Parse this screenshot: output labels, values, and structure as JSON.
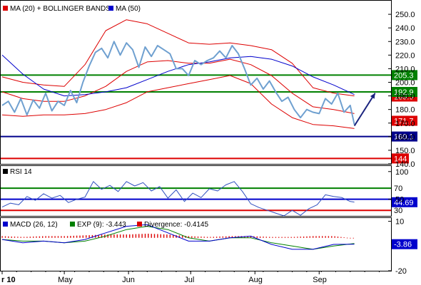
{
  "chart_data": [
    {
      "type": "line",
      "panel": "price",
      "legend": [
        {
          "label": "MA (20) + BOLLINGER BANDS",
          "color": "#dd0000"
        },
        {
          "label": "MA (50)",
          "color": "#0000cc"
        }
      ],
      "ylim": [
        140,
        260
      ],
      "ytick_labels": [
        "250.0",
        "240.0",
        "230.0",
        "220.0",
        "210.0",
        "200.0",
        "190.0",
        "180.0",
        "170.0",
        "160.0",
        "150.0",
        "140.0"
      ],
      "ytick_values": [
        250,
        240,
        230,
        220,
        210,
        200,
        190,
        180,
        170,
        160,
        150,
        140
      ],
      "x_labels": [
        "r 10",
        "May",
        "Jun",
        "Jul",
        "Aug",
        "Sep"
      ],
      "x_label_days": [
        0,
        30,
        61,
        91,
        122,
        153
      ],
      "x_range_days": [
        0,
        187
      ],
      "horizontal_levels": [
        {
          "value": 205.3,
          "label": "205.3",
          "color": "#008000"
        },
        {
          "value": 192.9,
          "label": "192.9",
          "color": "#008000"
        },
        {
          "value": 160.1,
          "label": "160.1",
          "color": "#00008b"
        },
        {
          "value": 144,
          "label": "144",
          "color": "#dd0000"
        }
      ],
      "value_tags": [
        {
          "value": 189.5,
          "label": "189.5",
          "color": "#dd0000"
        },
        {
          "value": 171.7,
          "label": "171.7",
          "color": "#dd0000"
        }
      ],
      "forecast_arrow": {
        "from": [
          170,
          168
        ],
        "to": [
          180,
          192
        ]
      },
      "series": [
        {
          "key": "price",
          "color": "#6fa0d0",
          "days": [
            0,
            3,
            6,
            9,
            12,
            15,
            18,
            21,
            24,
            27,
            30,
            33,
            36,
            39,
            42,
            45,
            48,
            51,
            54,
            57,
            60,
            63,
            66,
            69,
            72,
            75,
            78,
            81,
            84,
            87,
            90,
            93,
            96,
            99,
            102,
            105,
            108,
            111,
            114,
            117,
            120,
            123,
            126,
            129,
            132,
            135,
            138,
            141,
            144,
            147,
            150,
            153,
            156,
            159,
            162,
            165,
            168,
            170
          ],
          "values": [
            183,
            186,
            178,
            188,
            176,
            187,
            181,
            192,
            179,
            186,
            183,
            194,
            185,
            200,
            212,
            222,
            225,
            218,
            230,
            220,
            229,
            224,
            211,
            226,
            219,
            227,
            224,
            221,
            210,
            210,
            205,
            216,
            213,
            216,
            218,
            223,
            218,
            227,
            221,
            210,
            198,
            203,
            195,
            201,
            193,
            186,
            189,
            180,
            174,
            180,
            178,
            177,
            188,
            184,
            192,
            178,
            183,
            169
          ]
        },
        {
          "key": "ma20",
          "color": "#dd0000",
          "days": [
            0,
            10,
            20,
            30,
            40,
            50,
            60,
            70,
            80,
            90,
            100,
            110,
            120,
            130,
            140,
            150,
            160,
            170
          ],
          "values": [
            193,
            188,
            186,
            186,
            190,
            197,
            208,
            215,
            216,
            214,
            214,
            217,
            213,
            205,
            192,
            182,
            180,
            177
          ]
        },
        {
          "key": "bb_upper",
          "color": "#dd0000",
          "days": [
            0,
            10,
            20,
            30,
            40,
            50,
            60,
            70,
            80,
            90,
            100,
            110,
            120,
            130,
            140,
            150,
            160,
            170
          ],
          "values": [
            204,
            200,
            198,
            197,
            213,
            238,
            246,
            243,
            236,
            229,
            228,
            229,
            227,
            224,
            214,
            196,
            192,
            190
          ]
        },
        {
          "key": "bb_lower",
          "color": "#dd0000",
          "days": [
            0,
            10,
            20,
            30,
            40,
            50,
            60,
            70,
            80,
            90,
            100,
            110,
            120,
            130,
            140,
            150,
            160,
            170
          ],
          "values": [
            176,
            175,
            176,
            176,
            177,
            180,
            185,
            193,
            196,
            199,
            202,
            205,
            199,
            184,
            174,
            169,
            168,
            166
          ]
        },
        {
          "key": "ma50",
          "color": "#0000cc",
          "days": [
            0,
            10,
            20,
            30,
            40,
            50,
            60,
            70,
            80,
            90,
            100,
            110,
            120,
            130,
            140,
            150,
            160,
            170
          ],
          "values": [
            220,
            206,
            195,
            190,
            191,
            193,
            196,
            202,
            208,
            213,
            215,
            218,
            219,
            217,
            212,
            204,
            198,
            191
          ]
        }
      ]
    },
    {
      "type": "line",
      "panel": "rsi",
      "legend": [
        {
          "label": "RSI 14",
          "color": "#000000"
        }
      ],
      "ylim": [
        20,
        110
      ],
      "ytick_labels": [
        "100",
        "50"
      ],
      "ytick_values": [
        100,
        50
      ],
      "levels": [
        {
          "value": 70,
          "label": "70",
          "color": "#008000"
        },
        {
          "value": 50,
          "color": "#0000cc"
        },
        {
          "value": 30,
          "label": "30",
          "color": "#dd0000"
        }
      ],
      "value_tag": {
        "value": 44.69,
        "label": "44.69",
        "color": "#0000cc"
      },
      "series": [
        {
          "key": "rsi",
          "color": "#3050c0",
          "days": [
            0,
            4,
            8,
            12,
            16,
            20,
            24,
            28,
            32,
            36,
            40,
            44,
            48,
            52,
            56,
            60,
            64,
            68,
            72,
            76,
            80,
            84,
            88,
            92,
            96,
            100,
            104,
            108,
            112,
            116,
            120,
            124,
            128,
            132,
            136,
            140,
            144,
            148,
            152,
            156,
            160,
            164,
            168,
            170
          ],
          "values": [
            36,
            43,
            40,
            55,
            48,
            60,
            52,
            57,
            44,
            50,
            54,
            82,
            68,
            75,
            64,
            82,
            74,
            80,
            65,
            73,
            52,
            67,
            46,
            61,
            53,
            69,
            65,
            76,
            82,
            64,
            42,
            35,
            30,
            25,
            20,
            30,
            21,
            33,
            40,
            58,
            55,
            53,
            46,
            45
          ]
        }
      ]
    },
    {
      "type": "line",
      "panel": "macd",
      "legend": [
        {
          "label": "MACD (26, 12)",
          "color": "#0000cc"
        },
        {
          "label": "EXP (9): -3.443",
          "color": "#008000"
        },
        {
          "label": "Divergence: -0.4145",
          "color": "#dd0000"
        }
      ],
      "ylim": [
        -20,
        12
      ],
      "ytick_labels": [
        "10",
        "-20"
      ],
      "ytick_values": [
        10,
        -20
      ],
      "value_tag": {
        "value": -3.86,
        "label": "-3.86",
        "color": "#0000cc"
      },
      "series": [
        {
          "key": "macd",
          "color": "#0000cc",
          "days": [
            0,
            10,
            20,
            30,
            40,
            50,
            60,
            70,
            80,
            90,
            100,
            110,
            120,
            130,
            140,
            150,
            160,
            170
          ],
          "values": [
            -1,
            -3,
            -2,
            -3,
            -1,
            3,
            7,
            8,
            3,
            -2,
            -2,
            0,
            1,
            -4,
            -7,
            -7,
            -4,
            -3.86
          ]
        },
        {
          "key": "signal",
          "color": "#008000",
          "days": [
            0,
            10,
            20,
            30,
            40,
            50,
            60,
            70,
            80,
            90,
            100,
            110,
            120,
            130,
            140,
            150,
            160,
            170
          ],
          "values": [
            -1,
            -2,
            -2,
            -3,
            -2,
            1,
            5,
            7,
            5,
            0,
            -2,
            0,
            0,
            -3,
            -5,
            -7,
            -5,
            -3.443
          ]
        },
        {
          "key": "divergence",
          "color": "#dd0000",
          "days": [
            0,
            10,
            20,
            30,
            40,
            50,
            60,
            70,
            80,
            90,
            100,
            110,
            120,
            130,
            140,
            150,
            160,
            170
          ],
          "values": [
            1,
            0.5,
            1,
            1,
            1.5,
            2,
            2,
            2.5,
            2,
            1,
            0.5,
            1,
            1,
            0.5,
            0.5,
            1,
            1,
            -0.4145
          ]
        }
      ]
    }
  ]
}
